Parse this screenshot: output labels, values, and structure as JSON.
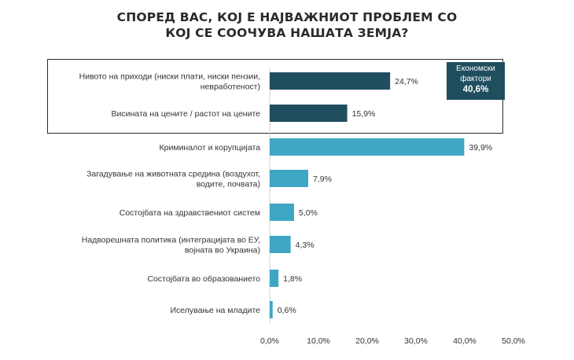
{
  "chart_data": {
    "type": "bar",
    "orientation": "horizontal",
    "title_lines": [
      "СПОРЕД ВАС, КОЈ Е НАЈВАЖНИОТ ПРОБЛЕМ СО",
      "КОЈ СЕ СООЧУВА НАШАТА ЗЕМЈА?"
    ],
    "categories": [
      [
        "Нивото на приходи (ниски плати, ниски пензии,",
        "невработеност)"
      ],
      [
        "Висината на цените / растот на цените"
      ],
      [
        "Криминалот и корупцијата"
      ],
      [
        "Загадување на животната средина (воздухот,",
        "водите, почвата)"
      ],
      [
        "Состојбата на здравствениот систем"
      ],
      [
        "Надворешната политика (интеграцијата во ЕУ,",
        "војната во Украина)"
      ],
      [
        "Состојбата во образованието"
      ],
      [
        "Иселување на младите"
      ]
    ],
    "values": [
      24.7,
      15.9,
      39.9,
      7.9,
      5.0,
      4.3,
      1.8,
      0.6
    ],
    "value_labels": [
      "24,7%",
      "15,9%",
      "39,9%",
      "7,9%",
      "5,0%",
      "4,3%",
      "1,8%",
      "0,6%"
    ],
    "xlim": [
      0,
      50
    ],
    "x_ticks": [
      0,
      10,
      20,
      30,
      40,
      50
    ],
    "x_tick_labels": [
      "0,0%",
      "10,0%",
      "20,0%",
      "30,0%",
      "40,0%",
      "50,0%"
    ],
    "grid": false,
    "colors": {
      "economic": "#1f4e5f",
      "other": "#3fa6c4",
      "text": "#333333"
    },
    "group": {
      "members": [
        0,
        1
      ],
      "label_lines": [
        "Економски",
        "фактори"
      ],
      "value_label": "40,6%"
    }
  }
}
